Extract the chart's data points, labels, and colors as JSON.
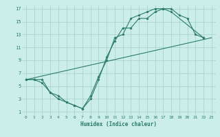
{
  "title": "",
  "xlabel": "Humidex (Indice chaleur)",
  "bg_color": "#cceee8",
  "grid_color": "#aad4cc",
  "line_color": "#2a7a6a",
  "xlim": [
    -0.5,
    23.5
  ],
  "ylim": [
    0.5,
    17.5
  ],
  "xticks": [
    0,
    1,
    2,
    3,
    4,
    5,
    6,
    7,
    8,
    9,
    10,
    11,
    12,
    13,
    14,
    15,
    16,
    17,
    18,
    19,
    20,
    21,
    22,
    23
  ],
  "yticks": [
    1,
    3,
    5,
    7,
    9,
    11,
    13,
    15,
    17
  ],
  "line1_x": [
    0,
    1,
    2,
    3,
    4,
    5,
    6,
    7,
    8,
    9,
    10,
    11,
    12,
    13,
    14,
    15,
    16,
    17,
    18,
    19,
    20,
    21,
    22
  ],
  "line1_y": [
    6,
    6,
    5.5,
    4,
    3,
    2.5,
    2,
    1.5,
    3,
    6,
    9.5,
    12,
    14,
    14,
    15.5,
    15.5,
    16.5,
    17,
    17,
    16,
    15.5,
    13,
    12.5
  ],
  "line2_x": [
    0,
    1,
    2,
    3,
    4,
    5,
    6,
    7,
    8,
    9,
    10,
    11,
    12,
    13,
    14,
    15,
    16,
    17,
    18,
    22
  ],
  "line2_y": [
    6,
    6,
    6,
    4,
    3.5,
    2.5,
    2,
    1.5,
    3.5,
    6.5,
    9,
    12.5,
    13,
    15.5,
    16,
    16.5,
    17,
    17,
    16.5,
    12.5
  ],
  "line3_x": [
    0,
    23
  ],
  "line3_y": [
    6,
    12.5
  ]
}
